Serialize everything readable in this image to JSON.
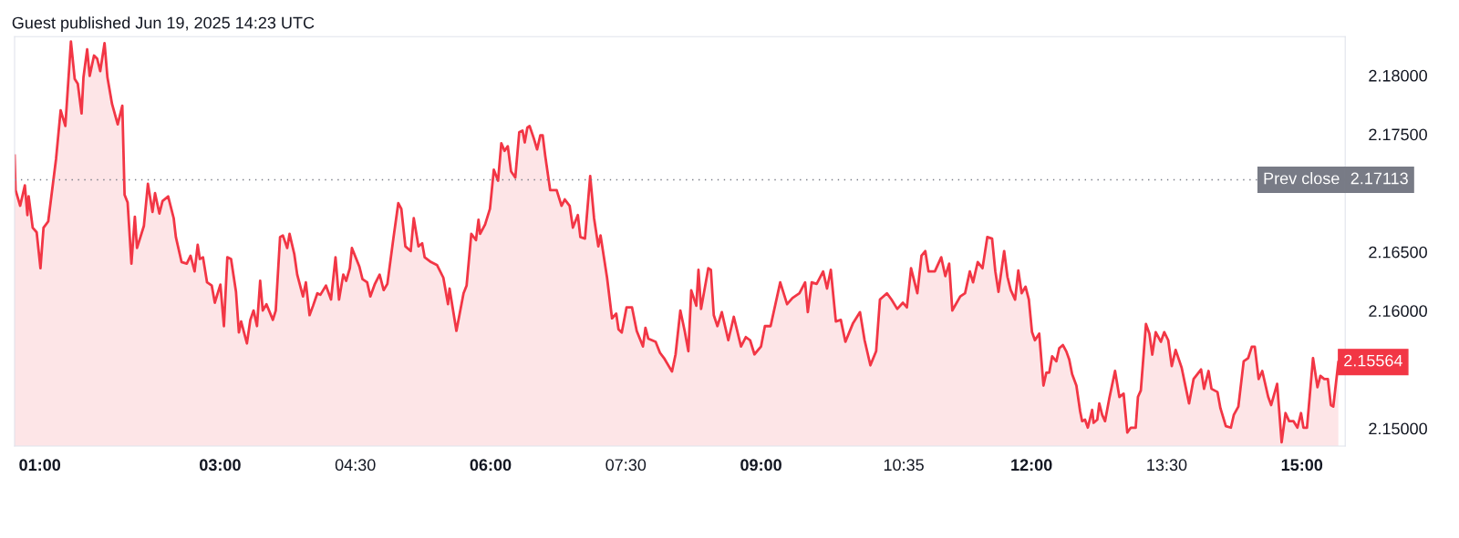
{
  "chart_data": {
    "type": "area",
    "title": "Guest published Jun 19, 2025 14:23 UTC",
    "x": [
      0.72,
      0.731,
      0.782,
      0.834,
      0.862,
      0.876,
      0.921,
      0.965,
      1.007,
      1.041,
      1.093,
      1.18,
      1.231,
      1.283,
      1.345,
      1.387,
      1.421,
      1.463,
      1.484,
      1.525,
      1.553,
      1.601,
      1.636,
      1.67,
      1.718,
      1.75,
      1.801,
      1.864,
      1.915,
      1.94,
      1.974,
      2.016,
      2.054,
      2.078,
      2.154,
      2.199,
      2.25,
      2.278,
      2.326,
      2.361,
      2.423,
      2.485,
      2.509,
      2.572,
      2.63,
      2.672,
      2.717,
      2.751,
      2.775,
      2.81,
      2.855,
      2.907,
      2.941,
      3.003,
      3.042,
      3.08,
      3.121,
      3.176,
      3.208,
      3.233,
      3.297,
      3.335,
      3.371,
      3.409,
      3.444,
      3.473,
      3.514,
      3.585,
      3.617,
      3.665,
      3.696,
      3.744,
      3.77,
      3.823,
      3.855,
      3.919,
      3.951,
      3.992,
      4.031,
      4.078,
      4.112,
      4.174,
      4.23,
      4.28,
      4.319,
      4.366,
      4.398,
      4.439,
      4.462,
      4.545,
      4.579,
      4.631,
      4.666,
      4.717,
      4.769,
      4.814,
      4.855,
      4.924,
      4.976,
      5.01,
      5.055,
      5.114,
      5.148,
      5.2,
      5.241,
      5.269,
      5.338,
      5.407,
      5.476,
      5.528,
      5.545,
      5.621,
      5.7,
      5.734,
      5.786,
      5.838,
      5.866,
      5.884,
      5.939,
      5.993,
      6.036,
      6.083,
      6.119,
      6.155,
      6.191,
      6.227,
      6.274,
      6.318,
      6.354,
      6.379,
      6.408,
      6.433,
      6.48,
      6.516,
      6.552,
      6.578,
      6.606,
      6.661,
      6.733,
      6.787,
      6.823,
      6.877,
      6.913,
      6.968,
      6.996,
      7.047,
      7.105,
      7.148,
      7.195,
      7.22,
      7.292,
      7.347,
      7.394,
      7.419,
      7.455,
      7.508,
      7.569,
      7.621,
      7.69,
      7.718,
      7.75,
      7.831,
      7.879,
      7.931,
      8.012,
      8.052,
      8.105,
      8.153,
      8.194,
      8.226,
      8.282,
      8.306,
      8.335,
      8.415,
      8.444,
      8.476,
      8.516,
      8.565,
      8.637,
      8.698,
      8.778,
      8.831,
      8.879,
      8.927,
      9.0,
      9.043,
      9.106,
      9.213,
      9.289,
      9.349,
      9.426,
      9.489,
      9.519,
      9.562,
      9.617,
      9.689,
      9.732,
      9.774,
      9.83,
      9.885,
      9.936,
      10.021,
      10.098,
      10.149,
      10.213,
      10.277,
      10.319,
      10.396,
      10.447,
      10.511,
      10.574,
      10.618,
      10.664,
      10.734,
      10.78,
      10.822,
      10.858,
      10.928,
      10.999,
      11.044,
      11.087,
      11.122,
      11.21,
      11.263,
      11.316,
      11.352,
      11.404,
      11.457,
      11.51,
      11.563,
      11.599,
      11.634,
      11.697,
      11.734,
      11.77,
      11.818,
      11.854,
      11.891,
      11.934,
      11.971,
      12.006,
      12.038,
      12.086,
      12.111,
      12.133,
      12.165,
      12.197,
      12.229,
      12.276,
      12.308,
      12.349,
      12.387,
      12.419,
      12.451,
      12.498,
      12.54,
      12.562,
      12.594,
      12.625,
      12.673,
      12.689,
      12.73,
      12.752,
      12.784,
      12.816,
      12.863,
      12.927,
      12.975,
      13.022,
      13.063,
      13.102,
      13.156,
      13.181,
      13.213,
      13.27,
      13.308,
      13.34,
      13.378,
      13.435,
      13.473,
      13.517,
      13.556,
      13.599,
      13.666,
      13.748,
      13.798,
      13.881,
      13.914,
      13.964,
      13.997,
      14.063,
      14.096,
      14.156,
      14.212,
      14.245,
      14.295,
      14.354,
      14.404,
      14.444,
      14.477,
      14.52,
      14.56,
      14.626,
      14.659,
      14.725,
      14.775,
      14.818,
      14.858,
      14.907,
      14.95,
      14.99,
      15.017,
      15.056,
      15.123,
      15.172,
      15.205,
      15.248,
      15.288,
      15.321,
      15.348,
      15.404
    ],
    "series": [
      {
        "color": "#f23645",
        "values": [
          2.17318,
          2.17025,
          2.16892,
          2.17065,
          2.16813,
          2.16972,
          2.16706,
          2.16666,
          2.16361,
          2.16706,
          2.16759,
          2.17291,
          2.17703,
          2.1757,
          2.18288,
          2.17969,
          2.17929,
          2.17677,
          2.17983,
          2.18222,
          2.17996,
          2.18169,
          2.18142,
          2.18036,
          2.18275,
          2.17983,
          2.17757,
          2.17584,
          2.17743,
          2.16985,
          2.16919,
          2.164,
          2.16799,
          2.16533,
          2.1672,
          2.17079,
          2.16839,
          2.16999,
          2.16826,
          2.16932,
          2.16972,
          2.16786,
          2.16626,
          2.16414,
          2.164,
          2.16467,
          2.16334,
          2.1656,
          2.1644,
          2.16454,
          2.16241,
          2.16214,
          2.16068,
          2.16222,
          2.15869,
          2.16454,
          2.1644,
          2.16161,
          2.15815,
          2.15909,
          2.15722,
          2.15922,
          2.16002,
          2.15869,
          2.16254,
          2.16002,
          2.16055,
          2.15922,
          2.16002,
          2.16626,
          2.1664,
          2.16533,
          2.16653,
          2.1648,
          2.16307,
          2.16121,
          2.16241,
          2.15962,
          2.16042,
          2.16148,
          2.16135,
          2.16214,
          2.16095,
          2.16454,
          2.16095,
          2.16307,
          2.16254,
          2.16361,
          2.16533,
          2.16374,
          2.16268,
          2.16241,
          2.16121,
          2.16228,
          2.16307,
          2.16175,
          2.16228,
          2.16626,
          2.16914,
          2.16866,
          2.16547,
          2.16507,
          2.16786,
          2.16547,
          2.16573,
          2.16454,
          2.16414,
          2.16387,
          2.16281,
          2.16055,
          2.16188,
          2.15829,
          2.16148,
          2.16214,
          2.16653,
          2.166,
          2.16773,
          2.16653,
          2.16733,
          2.16866,
          2.17198,
          2.17105,
          2.17424,
          2.17358,
          2.17398,
          2.17185,
          2.17132,
          2.17517,
          2.17531,
          2.1743,
          2.17557,
          2.1757,
          2.17464,
          2.17371,
          2.17491,
          2.17491,
          2.17318,
          2.17025,
          2.17025,
          2.16892,
          2.16946,
          2.16892,
          2.16706,
          2.16813,
          2.16626,
          2.16613,
          2.17145,
          2.16786,
          2.16547,
          2.1664,
          2.16281,
          2.15935,
          2.15975,
          2.15842,
          2.15815,
          2.16028,
          2.16028,
          2.15829,
          2.15696,
          2.15855,
          2.15762,
          2.15736,
          2.15643,
          2.15589,
          2.15483,
          2.15629,
          2.16002,
          2.15829,
          2.15656,
          2.16174,
          2.16042,
          2.16347,
          2.16015,
          2.16361,
          2.16347,
          2.15962,
          2.15869,
          2.15988,
          2.15749,
          2.15948,
          2.15696,
          2.15776,
          2.15749,
          2.15629,
          2.15696,
          2.15869,
          2.15869,
          2.16241,
          2.16055,
          2.16108,
          2.16148,
          2.16241,
          2.15988,
          2.16241,
          2.16228,
          2.16334,
          2.16188,
          2.16347,
          2.15909,
          2.15922,
          2.15736,
          2.15895,
          2.15988,
          2.15749,
          2.15536,
          2.15656,
          2.16095,
          2.16148,
          2.16095,
          2.16015,
          2.16068,
          2.16028,
          2.16361,
          2.16148,
          2.16467,
          2.16507,
          2.16334,
          2.16334,
          2.16454,
          2.16294,
          2.164,
          2.16002,
          2.16121,
          2.16148,
          2.16334,
          2.16241,
          2.16414,
          2.16361,
          2.16626,
          2.16613,
          2.16334,
          2.16161,
          2.16507,
          2.16287,
          2.16176,
          2.16094,
          2.16342,
          2.16149,
          2.16204,
          2.16094,
          2.15818,
          2.15749,
          2.15805,
          2.1557,
          2.15364,
          2.15474,
          2.15474,
          2.15612,
          2.1557,
          2.15681,
          2.15708,
          2.15653,
          2.15584,
          2.1546,
          2.15364,
          2.15143,
          2.15061,
          2.15074,
          2.15006,
          2.15157,
          2.15047,
          2.15074,
          2.15212,
          2.15116,
          2.15061,
          2.15253,
          2.15488,
          2.15267,
          2.15295,
          2.14964,
          2.15006,
          2.15006,
          2.15267,
          2.15322,
          2.15887,
          2.15805,
          2.15626,
          2.15818,
          2.15736,
          2.15818,
          2.15749,
          2.15529,
          2.15667,
          2.15515,
          2.15212,
          2.15419,
          2.15501,
          2.15336,
          2.15488,
          2.15336,
          2.15309,
          2.15171,
          2.15019,
          2.15006,
          2.15116,
          2.15185,
          2.1557,
          2.15598,
          2.15694,
          2.15694,
          2.15419,
          2.15488,
          2.15267,
          2.15198,
          2.15378,
          2.14882,
          2.1513,
          2.15061,
          2.15061,
          2.15006,
          2.1513,
          2.15006,
          2.15006,
          2.15598,
          2.1535,
          2.15446,
          2.15419,
          2.15419,
          2.15198,
          2.15185,
          2.15564
        ]
      }
    ],
    "xlim": [
      0.72,
      15.48
    ],
    "xticks": [
      {
        "value": 1,
        "label": "01:00"
      },
      {
        "value": 3,
        "label": "03:00"
      },
      {
        "value": 4.5,
        "label": "04:30"
      },
      {
        "value": 6,
        "label": "06:00"
      },
      {
        "value": 7.5,
        "label": "07:30"
      },
      {
        "value": 9,
        "label": "09:00"
      },
      {
        "value": 10.583,
        "label": "10:35"
      },
      {
        "value": 12,
        "label": "12:00"
      },
      {
        "value": 13.5,
        "label": "13:30"
      },
      {
        "value": 15,
        "label": "15:00"
      }
    ],
    "ylim": [
      2.1485,
      2.1833
    ],
    "yticks": [
      {
        "value": 2.15,
        "label": "2.15000"
      },
      {
        "value": 2.16,
        "label": "2.16000"
      },
      {
        "value": 2.165,
        "label": "2.16500"
      },
      {
        "value": 2.175,
        "label": "2.17500"
      },
      {
        "value": 2.18,
        "label": "2.18000"
      }
    ],
    "ref_lines": [
      {
        "axis": "y",
        "value": 2.17113,
        "label": "Prev close",
        "color": "#787b86",
        "line_style": "dotted"
      }
    ],
    "annotations": [
      {
        "text": "2.17113",
        "x": 15.48,
        "y": 2.17113
      },
      {
        "text": "2.15564",
        "x": 15.404,
        "y": 2.15564
      }
    ],
    "grid": false
  }
}
